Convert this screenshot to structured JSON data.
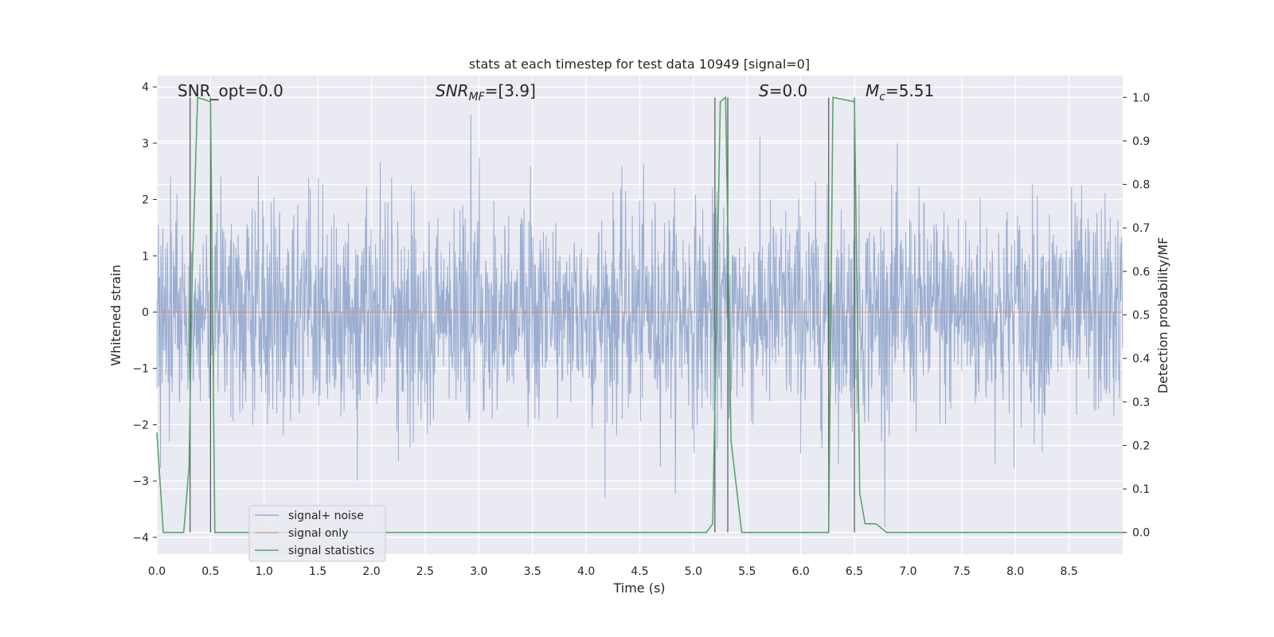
{
  "chart_data": {
    "type": "line",
    "title": "stats at each timestep for test data 10949 [signal=0]",
    "xlabel": "Time (s)",
    "ylabel_left": "Whitened strain",
    "ylabel_right": "Detection probability/MF",
    "xlim": [
      0.0,
      9.0
    ],
    "ylim_left": [
      -4.3,
      4.2
    ],
    "ylim_right": [
      -0.05,
      1.05
    ],
    "xticks": [
      "0.0",
      "0.5",
      "1.0",
      "1.5",
      "2.0",
      "2.5",
      "3.0",
      "3.5",
      "4.0",
      "4.5",
      "5.0",
      "5.5",
      "6.0",
      "6.5",
      "7.0",
      "7.5",
      "8.0",
      "8.5"
    ],
    "xtick_values": [
      0,
      0.5,
      1,
      1.5,
      2,
      2.5,
      3,
      3.5,
      4,
      4.5,
      5,
      5.5,
      6,
      6.5,
      7,
      7.5,
      8,
      8.5
    ],
    "yticks_left": [
      "−4",
      "−3",
      "−2",
      "−1",
      "0",
      "1",
      "2",
      "3",
      "4"
    ],
    "ytick_values_left": [
      -4,
      -3,
      -2,
      -1,
      0,
      1,
      2,
      3,
      4
    ],
    "yticks_right": [
      "0.0",
      "0.1",
      "0.2",
      "0.3",
      "0.4",
      "0.5",
      "0.6",
      "0.7",
      "0.8",
      "0.9",
      "1.0"
    ],
    "ytick_values_right": [
      0,
      0.1,
      0.2,
      0.3,
      0.4,
      0.5,
      0.6,
      0.7,
      0.8,
      0.9,
      1.0
    ],
    "grid": true,
    "legend_position": "lower-left",
    "legend": [
      "signal+ noise",
      "signal only",
      "signal statistics"
    ],
    "series": [
      {
        "name": "signal+ noise",
        "axis": "left",
        "color": "#4c72b0",
        "approx_envelope": [
          -2.0,
          2.0
        ],
        "peak_range": [
          -4.0,
          3.5
        ]
      },
      {
        "name": "signal only",
        "axis": "left",
        "color": "#dd8452",
        "values": "constant 0"
      },
      {
        "name": "signal statistics",
        "axis": "right",
        "color": "#55a868",
        "x": [
          0.0,
          0.06,
          0.12,
          0.2,
          0.25,
          0.3,
          0.33,
          0.38,
          0.5,
          0.54,
          0.58,
          0.7,
          1.0,
          2.0,
          2.4,
          3.0,
          4.0,
          4.5,
          4.7,
          5.0,
          5.12,
          5.18,
          5.25,
          5.3,
          5.35,
          5.45,
          5.5,
          5.6,
          6.0,
          6.2,
          6.26,
          6.3,
          6.5,
          6.55,
          6.6,
          6.65,
          6.7,
          6.8,
          7.0,
          7.5,
          8.0,
          9.0
        ],
        "values": [
          0.23,
          0.0,
          0.0,
          0.0,
          0.0,
          0.15,
          0.6,
          1.0,
          0.99,
          0.0,
          0.0,
          0.0,
          0.0,
          0.0,
          0.0,
          0.0,
          0.0,
          0.0,
          0.0,
          0.0,
          0.0,
          0.02,
          0.99,
          1.0,
          0.21,
          0.0,
          0.0,
          0.0,
          0.0,
          0.0,
          0.0,
          1.0,
          0.99,
          0.09,
          0.02,
          0.02,
          0.02,
          0.0,
          0.0,
          0.0,
          0.0,
          0.0
        ]
      }
    ],
    "vlines": [
      0.31,
      0.5,
      5.2,
      5.32,
      6.26,
      6.5
    ],
    "annotations": [
      {
        "text": "SNR_opt=0.0",
        "x": 0.2
      },
      {
        "text": "SNR",
        "sub": "MF",
        "rest": "=[3.9]",
        "x": 2.6
      },
      {
        "text": "S",
        "rest": "=0.0",
        "x": 5.6
      },
      {
        "text": "M",
        "sub": "c",
        "rest": "=5.51",
        "x": 6.6
      }
    ]
  }
}
